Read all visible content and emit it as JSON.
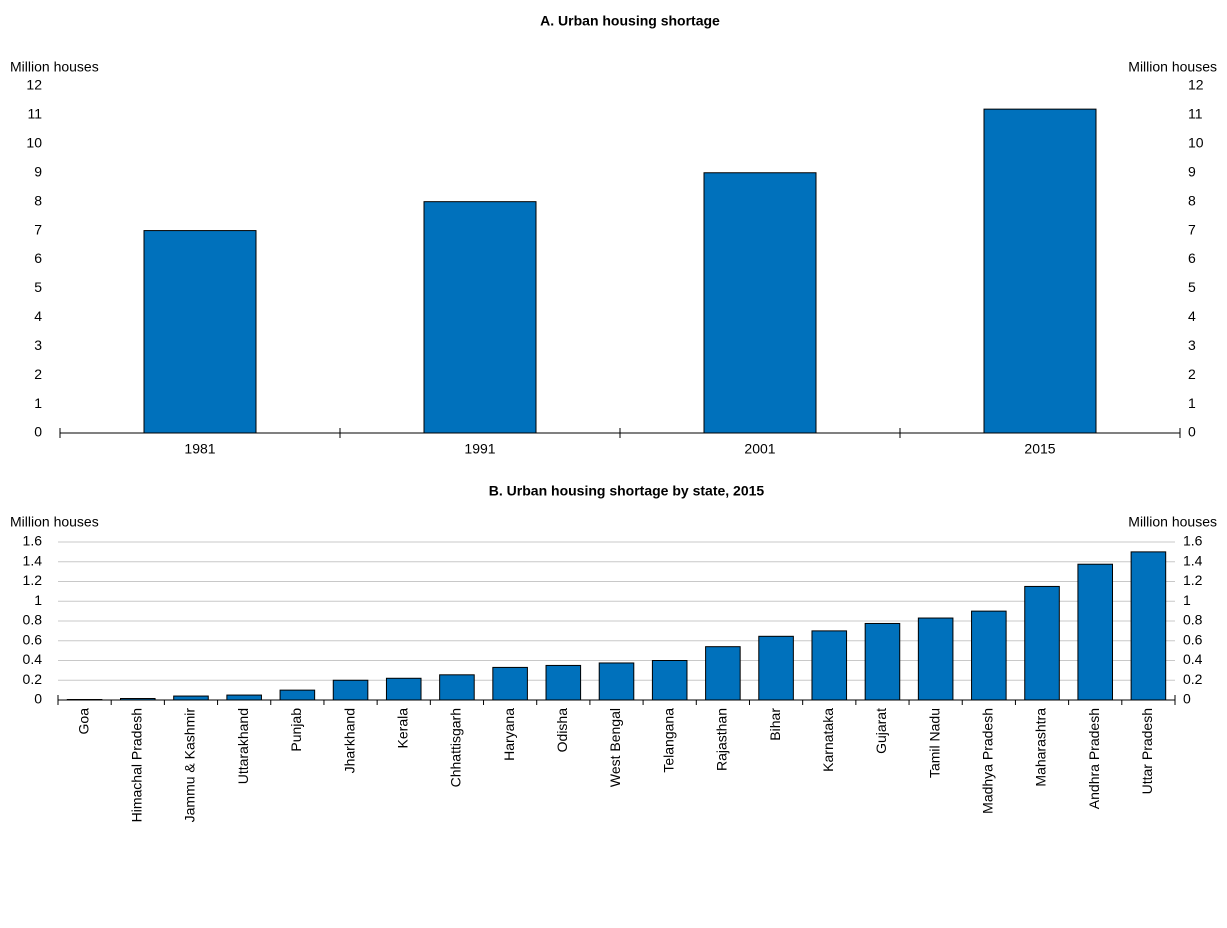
{
  "chart_data": [
    {
      "type": "bar",
      "title": "A. Urban housing shortage",
      "y_label": "Million houses",
      "y2_label": "Million houses",
      "categories": [
        "1981",
        "1991",
        "2001",
        "2015"
      ],
      "values": [
        7,
        8,
        9,
        11.2
      ],
      "color": "#0071bc",
      "ylim": [
        0,
        12
      ],
      "yticks": [
        0,
        1,
        2,
        3,
        4,
        5,
        6,
        7,
        8,
        9,
        10,
        11,
        12
      ],
      "y2lim": [
        0,
        12
      ],
      "y2ticks": [
        0,
        1,
        2,
        3,
        4,
        5,
        6,
        7,
        8,
        9,
        10,
        11,
        12
      ],
      "grid": false
    },
    {
      "type": "bar",
      "title": "B. Urban housing shortage by state, 2015",
      "y_label": "Million houses",
      "y2_label": "Million houses",
      "categories": [
        "Goa",
        "Himachal Pradesh",
        "Jammu & Kashmir",
        "Uttarakhand",
        "Punjab",
        "Jharkhand",
        "Kerala",
        "Chhattisgarh",
        "Haryana",
        "Odisha",
        "West Bengal",
        "Telangana",
        "Rajasthan",
        "Bihar",
        "Karnataka",
        "Gujarat",
        "Tamil Nadu",
        "Madhya Pradesh",
        "Maharashtra",
        "Andhra Pradesh",
        "Uttar Pradesh"
      ],
      "values": [
        0.005,
        0.015,
        0.04,
        0.05,
        0.1,
        0.2,
        0.22,
        0.255,
        0.33,
        0.35,
        0.375,
        0.4,
        0.54,
        0.645,
        0.7,
        0.775,
        0.83,
        0.9,
        1.15,
        1.375,
        1.5
      ],
      "color": "#0071bc",
      "ylim": [
        0,
        1.6
      ],
      "yticks": [
        0,
        0.2,
        0.4,
        0.6,
        0.8,
        1,
        1.2,
        1.4,
        1.6
      ],
      "y2lim": [
        0,
        1.6
      ],
      "y2ticks": [
        0,
        0.2,
        0.4,
        0.6,
        0.8,
        1,
        1.2,
        1.4,
        1.6
      ],
      "grid": true
    }
  ]
}
